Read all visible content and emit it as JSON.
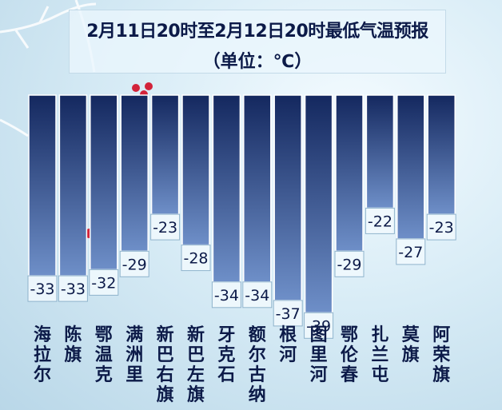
{
  "title": "2月11日20时至2月12日20时最低气温预报",
  "subtitle": "（单位：℃）",
  "colors": {
    "bar_top": "#14285f",
    "bar_bottom": "#6e8fc8",
    "label_text": "#0c1a48"
  },
  "chart_data": {
    "type": "bar",
    "title": "2月11日20时至2月12日20时最低气温预报",
    "subtitle": "（单位：℃）",
    "xlabel": "",
    "ylabel": "",
    "ylim": [
      -42,
      0
    ],
    "grid": false,
    "categories": [
      "海拉尔",
      "陈旗",
      "鄂温克",
      "满洲里",
      "新巴右旗",
      "新巴左旗",
      "牙克石",
      "额尔古纳",
      "根河",
      "图里河",
      "鄂伦春",
      "扎兰屯",
      "莫旗",
      "阿荣旗"
    ],
    "values": [
      -33,
      -33,
      -32,
      -29,
      -23,
      -28,
      -34,
      -34,
      -37,
      -39,
      -29,
      -22,
      -27,
      -23
    ],
    "value_labels": [
      "-33",
      "-33",
      "-32",
      "-29",
      "-23",
      "-28",
      "-34",
      "-34",
      "-37",
      "-39",
      "-29",
      "-22",
      "-27",
      "-23"
    ]
  }
}
